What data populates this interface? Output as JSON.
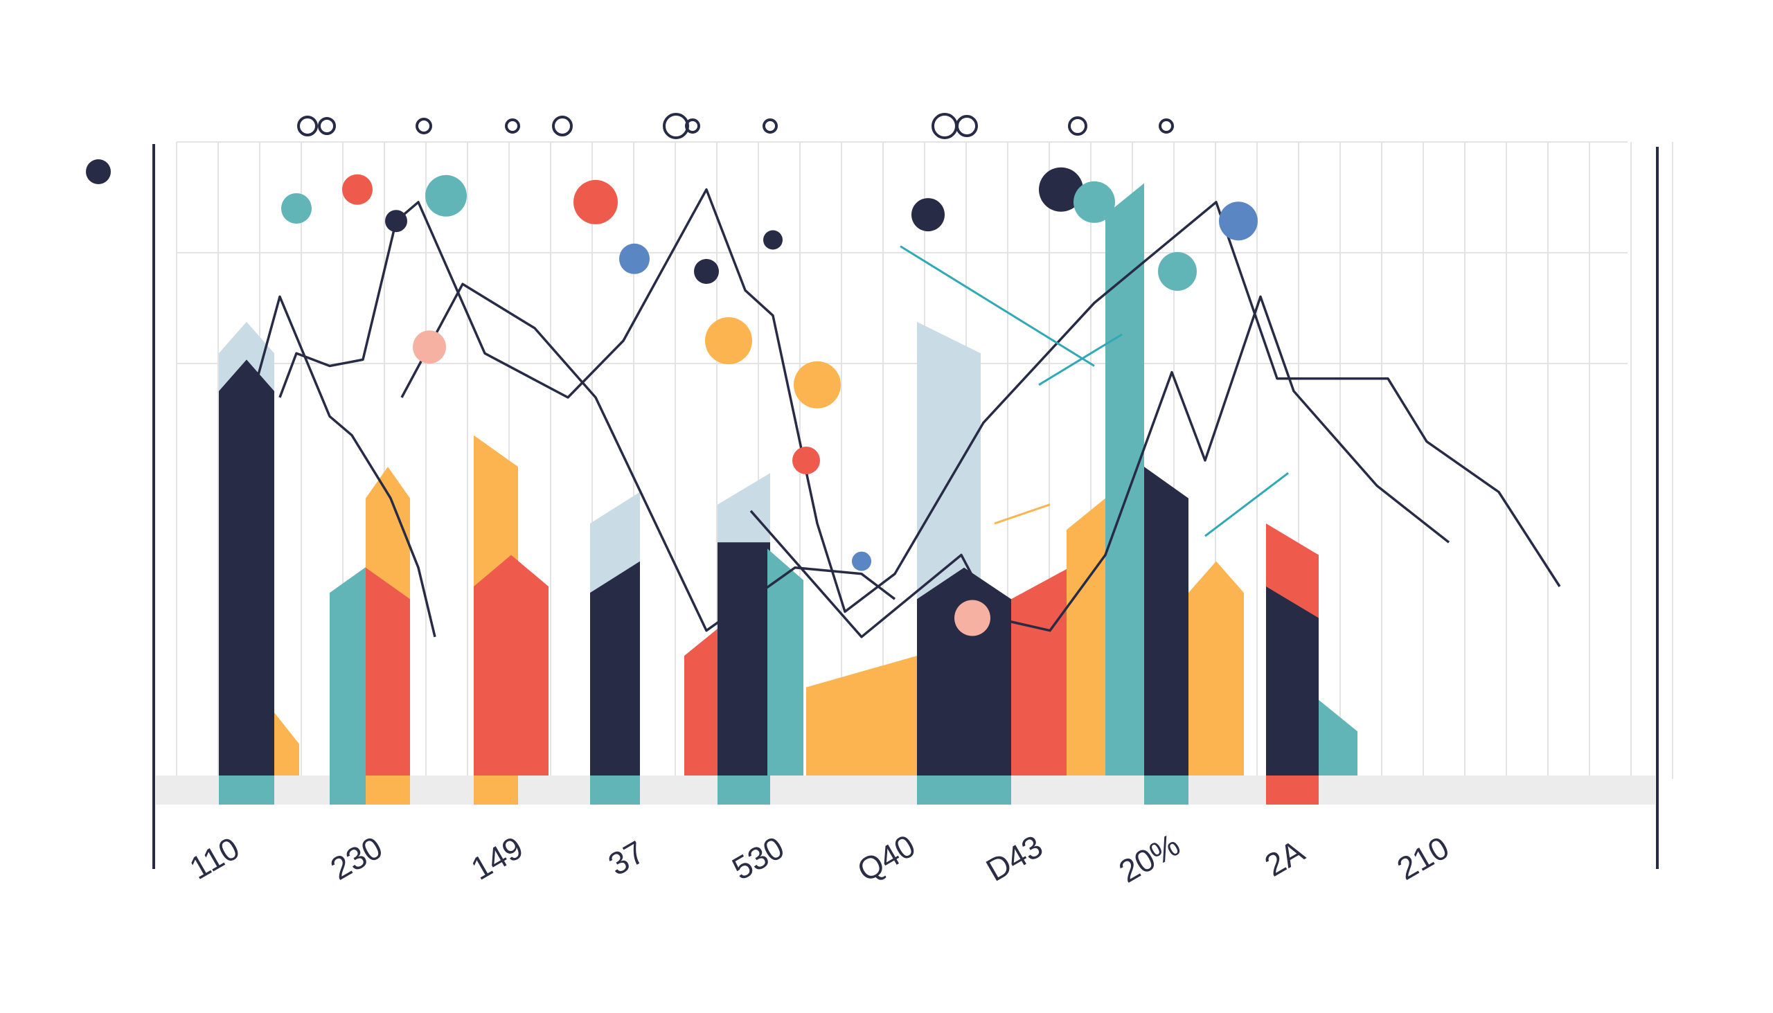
{
  "chart_data": {
    "type": "bar",
    "title": "",
    "xlabel": "",
    "ylabel": "",
    "ylim": [
      0,
      100
    ],
    "grid": true,
    "categories": [
      "110",
      "230",
      "149",
      "37",
      "530",
      "Q40",
      "D43",
      "20%",
      "2A",
      "210"
    ],
    "colors": {
      "navy": "#272b45",
      "teal": "#62b5b7",
      "orange": "#fbb44f",
      "red": "#ee5a4b",
      "lightblue": "#c9dbe4",
      "blue": "#5b86c4",
      "pink": "#f6b1a3",
      "track": "#ececec",
      "grid": "#e3e3e3",
      "line": "#272b45",
      "accent_line": "#2fa9b5"
    },
    "bars": [
      {
        "x": 1.2,
        "w": 1.0,
        "top": 72,
        "shape": "peak",
        "color": "lightblue"
      },
      {
        "x": 1.2,
        "w": 1.0,
        "top": 66,
        "shape": "peak",
        "color": "navy"
      },
      {
        "x": 2.2,
        "w": 0.45,
        "top": 10,
        "shape": "slant",
        "color": "orange"
      },
      {
        "x": 3.2,
        "w": 0.8,
        "top": 34,
        "shape": "slant-up",
        "color": "teal"
      },
      {
        "x": 3.85,
        "w": 0.8,
        "top": 49,
        "shape": "peak",
        "color": "orange"
      },
      {
        "x": 3.85,
        "w": 0.8,
        "top": 33,
        "shape": "slant",
        "color": "red"
      },
      {
        "x": 5.8,
        "w": 0.8,
        "top": 54,
        "shape": "slant",
        "color": "orange"
      },
      {
        "x": 5.8,
        "w": 1.35,
        "top": 35,
        "shape": "peak",
        "color": "red"
      },
      {
        "x": 7.9,
        "w": 0.9,
        "top": 45,
        "shape": "slant-up",
        "color": "lightblue"
      },
      {
        "x": 7.9,
        "w": 0.9,
        "top": 34,
        "shape": "slant-up",
        "color": "navy"
      },
      {
        "x": 9.6,
        "w": 0.7,
        "top": 24,
        "shape": "slant-up",
        "color": "red"
      },
      {
        "x": 10.2,
        "w": 0.95,
        "top": 48,
        "shape": "slant-up",
        "color": "lightblue"
      },
      {
        "x": 10.2,
        "w": 0.95,
        "top": 37,
        "shape": "flat",
        "color": "navy"
      },
      {
        "x": 11.1,
        "w": 0.65,
        "top": 36,
        "shape": "slant",
        "color": "teal"
      },
      {
        "x": 11.8,
        "w": 2.0,
        "top": 19,
        "shape": "slant-up",
        "color": "orange"
      },
      {
        "x": 13.8,
        "w": 1.15,
        "top": 72,
        "shape": "slant",
        "color": "lightblue"
      },
      {
        "x": 13.8,
        "w": 1.7,
        "top": 33,
        "shape": "peak",
        "color": "navy"
      },
      {
        "x": 15.5,
        "w": 1.05,
        "top": 33,
        "shape": "slant-up",
        "color": "red"
      },
      {
        "x": 16.5,
        "w": 0.7,
        "top": 44,
        "shape": "slant-up",
        "color": "orange"
      },
      {
        "x": 17.2,
        "w": 0.7,
        "top": 94,
        "shape": "slant-up",
        "color": "teal"
      },
      {
        "x": 17.9,
        "w": 0.8,
        "top": 49,
        "shape": "slant",
        "color": "navy"
      },
      {
        "x": 18.7,
        "w": 1.0,
        "top": 34,
        "shape": "peak",
        "color": "orange"
      },
      {
        "x": 20.1,
        "w": 0.95,
        "top": 40,
        "shape": "slant",
        "color": "red"
      },
      {
        "x": 20.1,
        "w": 0.95,
        "top": 30,
        "shape": "slant",
        "color": "navy"
      },
      {
        "x": 21.05,
        "w": 0.7,
        "top": 12,
        "shape": "slant",
        "color": "teal"
      }
    ],
    "base_segments": [
      {
        "x": 1.2,
        "w": 1.0,
        "color": "teal"
      },
      {
        "x": 3.2,
        "w": 0.65,
        "color": "teal"
      },
      {
        "x": 3.85,
        "w": 0.8,
        "color": "orange"
      },
      {
        "x": 5.8,
        "w": 0.8,
        "color": "orange"
      },
      {
        "x": 7.9,
        "w": 0.9,
        "color": "teal"
      },
      {
        "x": 10.2,
        "w": 0.95,
        "color": "teal"
      },
      {
        "x": 13.8,
        "w": 1.7,
        "color": "teal"
      },
      {
        "x": 17.9,
        "w": 0.8,
        "color": "teal"
      },
      {
        "x": 20.1,
        "w": 0.95,
        "color": "red"
      }
    ],
    "series": [
      {
        "points": [
          [
            1.8,
            60
          ],
          [
            2.3,
            76
          ],
          [
            3.2,
            57
          ],
          [
            3.6,
            54
          ],
          [
            4.3,
            44
          ],
          [
            4.8,
            33
          ],
          [
            5.1,
            22
          ]
        ]
      },
      {
        "points": [
          [
            4.5,
            60
          ],
          [
            5.6,
            78
          ],
          [
            6.9,
            71
          ],
          [
            8.0,
            60
          ],
          [
            10.0,
            23
          ],
          [
            11.6,
            33
          ],
          [
            12.8,
            32
          ],
          [
            13.4,
            28
          ]
        ]
      },
      {
        "points": [
          [
            2.3,
            60
          ],
          [
            2.6,
            67
          ],
          [
            3.2,
            65
          ],
          [
            3.8,
            66
          ],
          [
            4.4,
            88
          ],
          [
            4.8,
            91
          ],
          [
            6.0,
            67
          ],
          [
            7.5,
            60
          ],
          [
            8.5,
            69
          ],
          [
            10.0,
            93
          ],
          [
            10.7,
            77
          ],
          [
            11.2,
            73
          ],
          [
            12.0,
            40
          ],
          [
            12.5,
            26
          ],
          [
            13.4,
            32
          ],
          [
            15.0,
            56
          ],
          [
            17.0,
            75
          ],
          [
            19.2,
            91
          ],
          [
            20.3,
            63
          ],
          [
            22.3,
            63
          ],
          [
            23.0,
            53
          ],
          [
            24.3,
            45
          ],
          [
            25.4,
            30
          ]
        ]
      },
      {
        "points": [
          [
            10.8,
            42
          ],
          [
            12.8,
            22
          ],
          [
            14.6,
            35
          ],
          [
            15.2,
            25
          ],
          [
            16.2,
            23
          ],
          [
            17.2,
            35
          ],
          [
            18.4,
            64
          ],
          [
            19.0,
            50
          ],
          [
            20.0,
            76
          ],
          [
            20.6,
            61
          ],
          [
            21.4,
            53
          ],
          [
            22.1,
            46
          ],
          [
            23.4,
            37
          ]
        ]
      }
    ],
    "accent_lines": [
      {
        "from": [
          13.5,
          84
        ],
        "to": [
          17.0,
          65
        ]
      },
      {
        "from": [
          16.0,
          62
        ],
        "to": [
          17.5,
          70
        ]
      },
      {
        "from": [
          15.2,
          40
        ],
        "to": [
          16.2,
          43
        ]
      },
      {
        "from": [
          19.0,
          38
        ],
        "to": [
          20.5,
          48
        ]
      }
    ],
    "dots": [
      {
        "x": 2.6,
        "y": 90,
        "r": 22,
        "color": "teal"
      },
      {
        "x": 3.7,
        "y": 93,
        "r": 22,
        "color": "red"
      },
      {
        "x": 4.4,
        "y": 88,
        "r": 16,
        "color": "navy"
      },
      {
        "x": 5.3,
        "y": 92,
        "r": 30,
        "color": "teal"
      },
      {
        "x": 8.0,
        "y": 91,
        "r": 32,
        "color": "red"
      },
      {
        "x": 10.0,
        "y": 80,
        "r": 18,
        "color": "navy"
      },
      {
        "x": 11.2,
        "y": 85,
        "r": 14,
        "color": "navy"
      },
      {
        "x": 12.0,
        "y": 62,
        "r": 34,
        "color": "orange"
      },
      {
        "x": 10.4,
        "y": 69,
        "r": 34,
        "color": "orange"
      },
      {
        "x": 14.0,
        "y": 89,
        "r": 24,
        "color": "navy"
      },
      {
        "x": 16.4,
        "y": 93,
        "r": 32,
        "color": "navy"
      },
      {
        "x": 17.0,
        "y": 91,
        "r": 30,
        "color": "teal"
      },
      {
        "x": 5.0,
        "y": 68,
        "r": 24,
        "color": "pink"
      },
      {
        "x": 8.7,
        "y": 82,
        "r": 22,
        "color": "blue"
      },
      {
        "x": 11.8,
        "y": 50,
        "r": 20,
        "color": "red"
      },
      {
        "x": 12.8,
        "y": 34,
        "r": 14,
        "color": "blue"
      },
      {
        "x": 14.8,
        "y": 25,
        "r": 26,
        "color": "pink"
      },
      {
        "x": 18.5,
        "y": 80,
        "r": 28,
        "color": "teal"
      },
      {
        "x": 19.6,
        "y": 88,
        "r": 28,
        "color": "blue"
      }
    ],
    "top_circles": [
      {
        "x": 2.8,
        "r": 13
      },
      {
        "x": 3.15,
        "r": 11
      },
      {
        "x": 4.9,
        "r": 10
      },
      {
        "x": 6.5,
        "r": 9
      },
      {
        "x": 7.4,
        "r": 13
      },
      {
        "x": 9.45,
        "r": 17
      },
      {
        "x": 9.75,
        "r": 9
      },
      {
        "x": 11.15,
        "r": 9
      },
      {
        "x": 14.3,
        "r": 17
      },
      {
        "x": 14.7,
        "r": 14
      },
      {
        "x": 16.7,
        "r": 12
      },
      {
        "x": 18.3,
        "r": 9
      }
    ]
  }
}
